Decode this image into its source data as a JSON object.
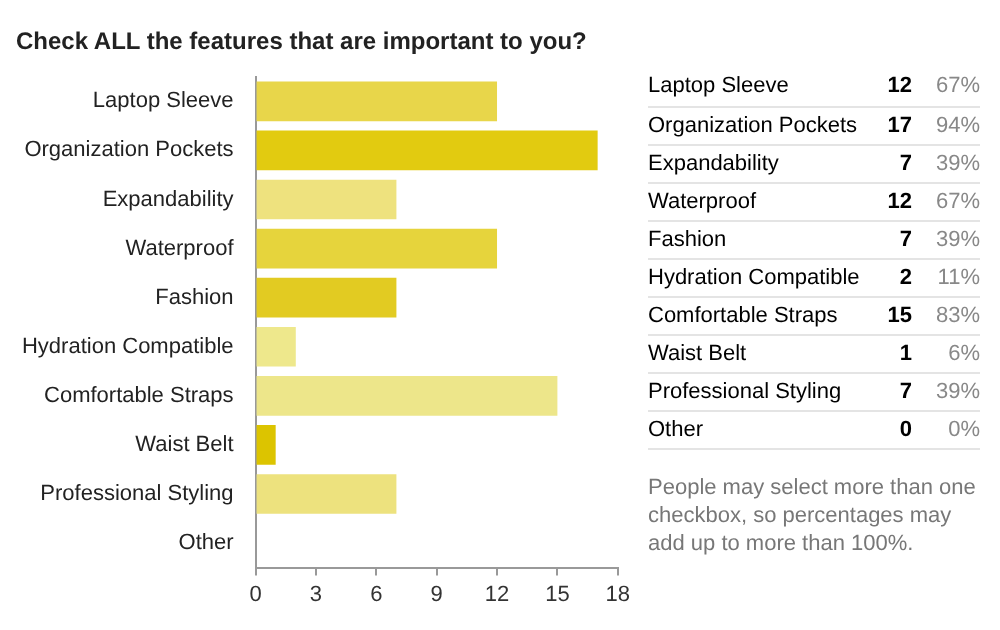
{
  "chart_data": [
    {
      "type": "bar",
      "orientation": "horizontal",
      "title": "Check ALL the features that are important to you?",
      "categories": [
        "Laptop Sleeve",
        "Organization Pockets",
        "Expandability",
        "Waterproof",
        "Fashion",
        "Hydration Compatible",
        "Comfortable Straps",
        "Waist Belt",
        "Professional Styling",
        "Other"
      ],
      "values": [
        12,
        17,
        7,
        12,
        7,
        2,
        15,
        1,
        7,
        0
      ],
      "colors": [
        "#e8d64a",
        "#e2cb10",
        "#eee27e",
        "#e6d43c",
        "#e2cb22",
        "#eee88c",
        "#ede68a",
        "#dcc400",
        "#ede27e",
        "#ede27e"
      ],
      "xlim": [
        0,
        18
      ],
      "xticks": [
        0,
        3,
        6,
        9,
        12,
        15,
        18
      ],
      "grid": false,
      "legend": false
    },
    {
      "type": "other",
      "categories": [
        "Laptop Sleeve",
        "Organization Pockets",
        "Expandability",
        "Waterproof",
        "Fashion",
        "Hydration Compatible",
        "Comfortable Straps",
        "Waist Belt",
        "Professional Styling",
        "Other"
      ],
      "series": [
        {
          "values": [
            12,
            17,
            7,
            12,
            7,
            2,
            15,
            1,
            7,
            0
          ]
        },
        {
          "values": [
            67,
            94,
            39,
            67,
            39,
            11,
            83,
            6,
            39,
            0
          ],
          "value_labels": [
            "67%",
            "94%",
            "39%",
            "67%",
            "39%",
            "11%",
            "83%",
            "6%",
            "39%",
            "0%"
          ]
        }
      ],
      "data_labels": true,
      "annotations": [
        "People may select more than one checkbox, so percentages may add up to more than 100%."
      ]
    }
  ]
}
